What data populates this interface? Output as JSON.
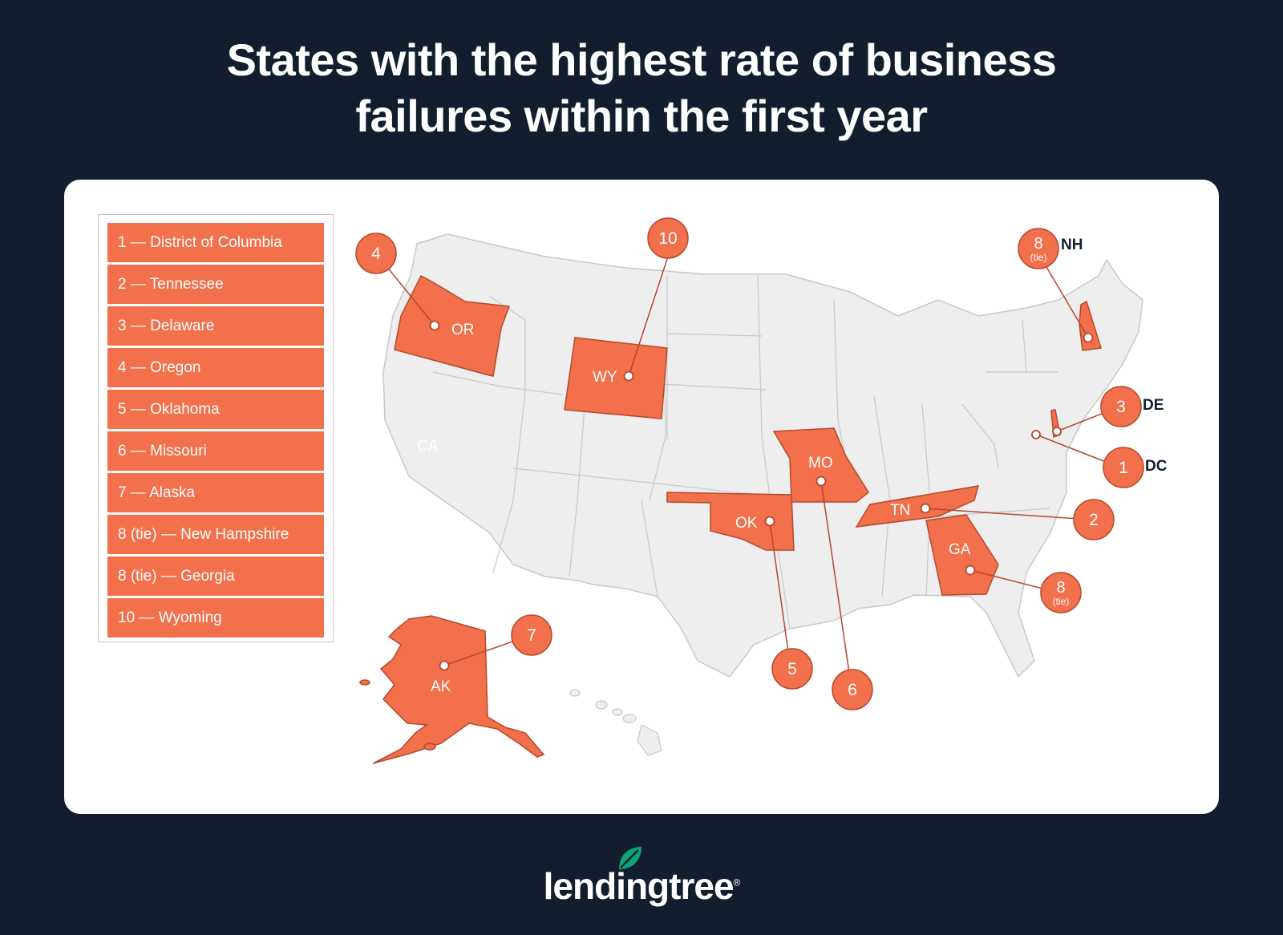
{
  "title_line1": "States with the highest rate of business",
  "title_line2": "failures within the first year",
  "legend": [
    "1 — District of Columbia",
    "2 — Tennessee",
    "3 — Delaware",
    "4 — Oregon",
    "5 — Oklahoma",
    "6 — Missouri",
    "7 — Alaska",
    "8 (tie) — New Hampshire",
    "8 (tie) — Georgia",
    "10 — Wyoming"
  ],
  "states": {
    "OR": {
      "abbr": "OR",
      "rank": "4",
      "tie": ""
    },
    "WY": {
      "abbr": "WY",
      "rank": "10",
      "tie": ""
    },
    "NH": {
      "abbr": "NH",
      "rank": "8",
      "tie": "(tie)"
    },
    "DE": {
      "abbr": "DE",
      "rank": "3",
      "tie": ""
    },
    "DC": {
      "abbr": "DC",
      "rank": "1",
      "tie": ""
    },
    "TN": {
      "abbr": "TN",
      "rank": "2",
      "tie": ""
    },
    "GA": {
      "abbr": "GA",
      "rank": "8",
      "tie": "(tie)"
    },
    "MO": {
      "abbr": "MO",
      "rank": "6",
      "tie": ""
    },
    "OK": {
      "abbr": "OK",
      "rank": "5",
      "tie": ""
    },
    "AK": {
      "abbr": "AK",
      "rank": "7",
      "tie": ""
    },
    "CA": {
      "abbr": "CA"
    }
  },
  "colors": {
    "background": "#121e2e",
    "highlight": "#f2704b",
    "map_base": "#eeeeee",
    "map_border": "#c9c9c9",
    "logo_leaf": "#0ea373"
  },
  "logo": {
    "text": "lendingtree",
    "reg": "®"
  }
}
